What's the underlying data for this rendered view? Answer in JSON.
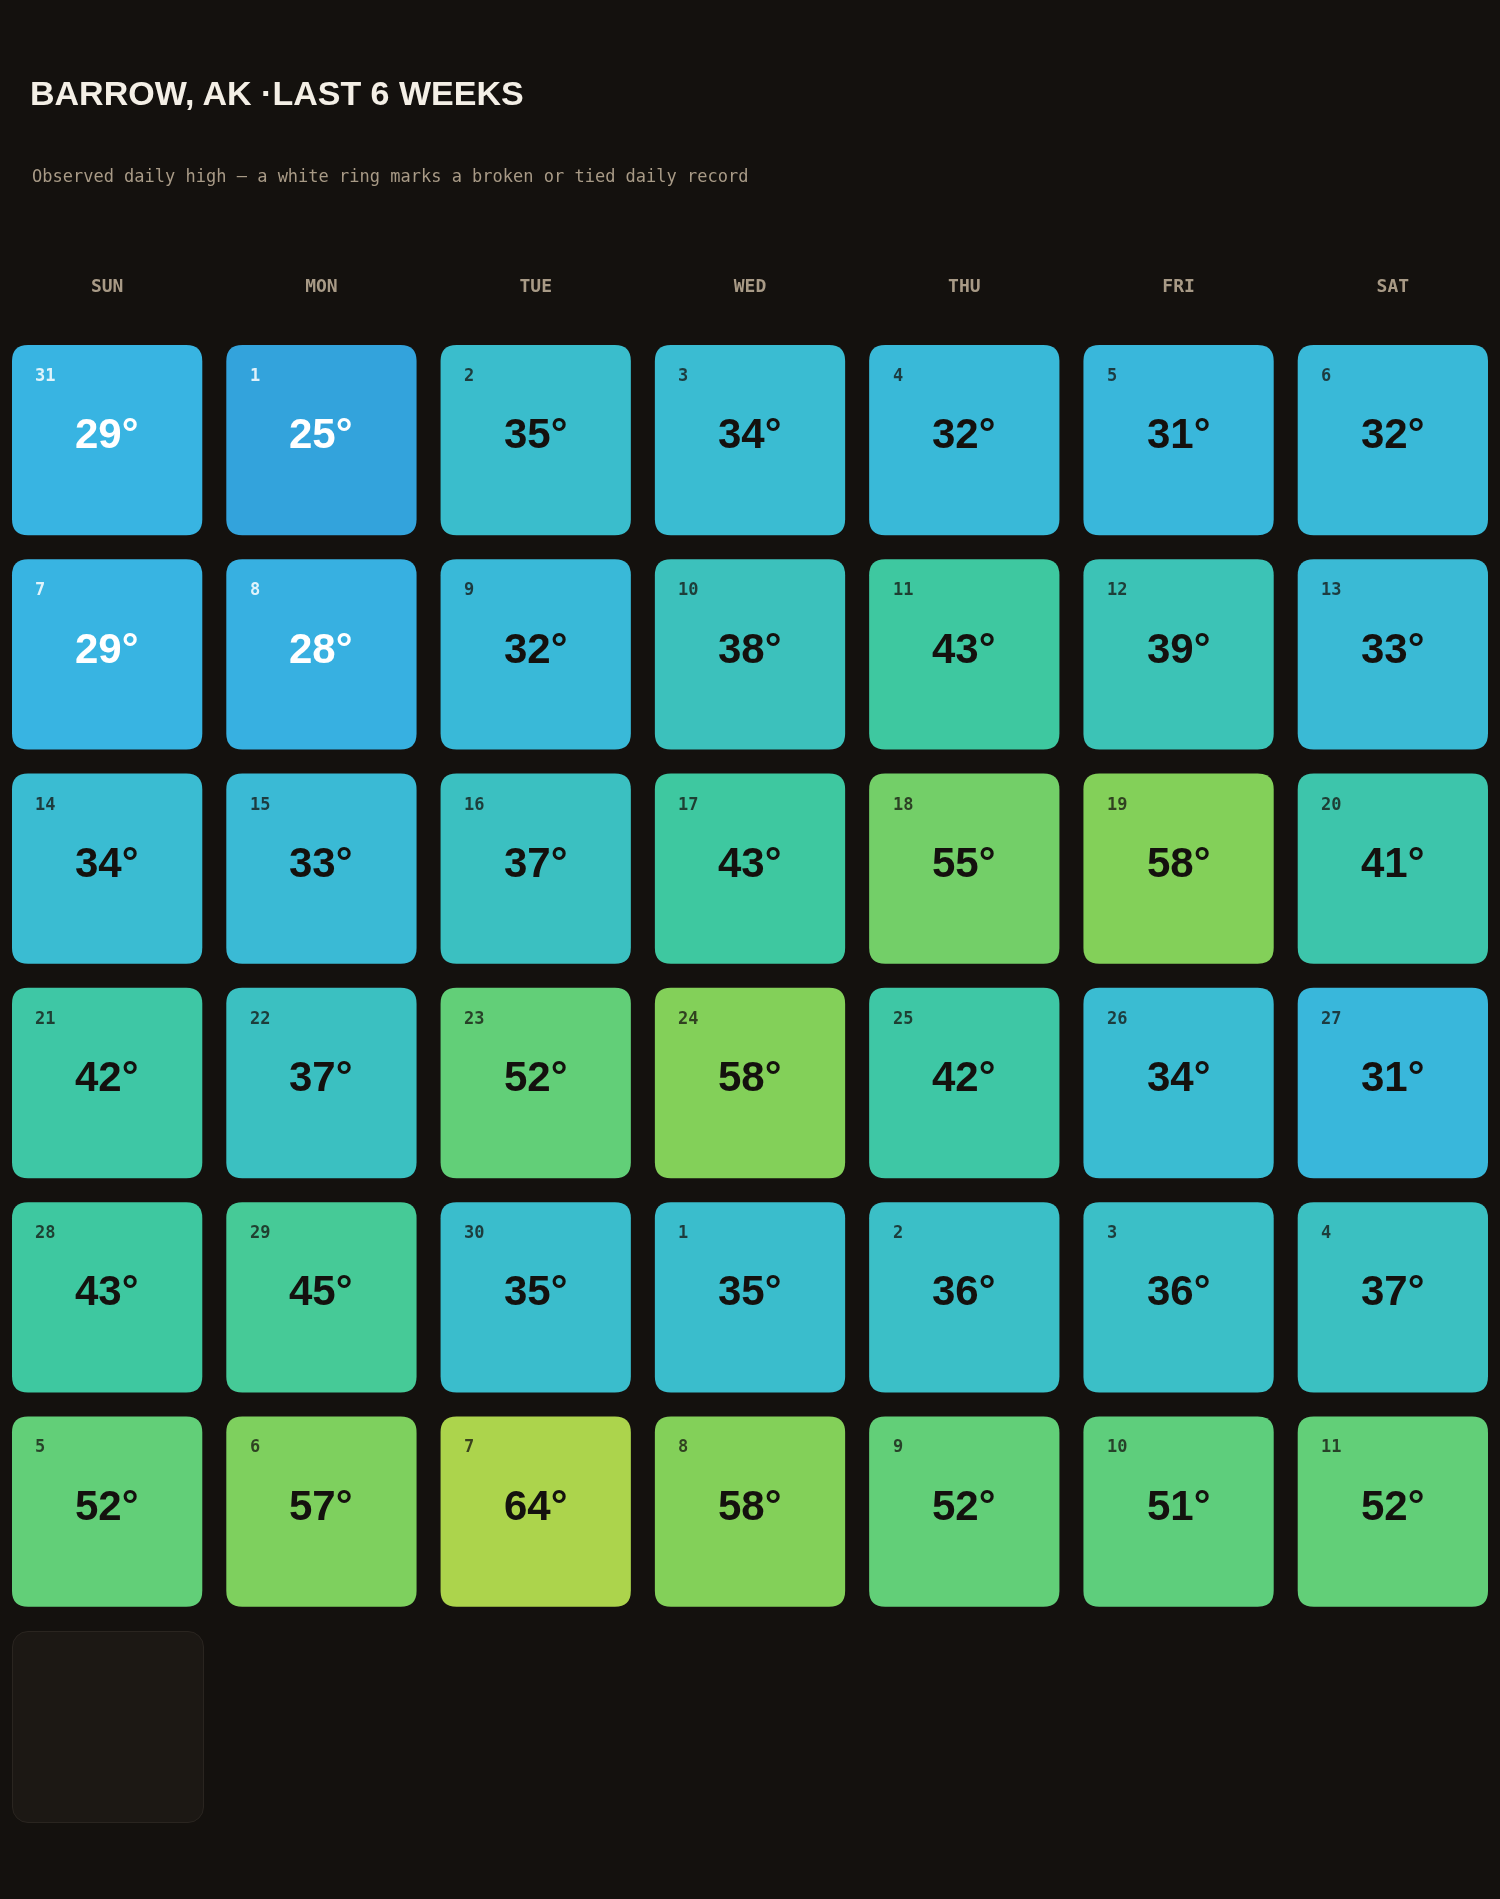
{
  "chart_data": {
    "type": "heatmap",
    "title": "BARROW, AK ·LAST 6 WEEKS",
    "subtitle": "Observed daily high — a white ring marks a broken or tied daily record",
    "categories": [
      "SUN",
      "MON",
      "TUE",
      "WED",
      "THU",
      "FRI",
      "SAT"
    ],
    "y_categories": [
      null,
      null,
      null,
      null,
      null,
      null
    ],
    "cells": [
      [
        29,
        25,
        35,
        34,
        32,
        31,
        32
      ],
      [
        29,
        28,
        32,
        38,
        43,
        39,
        33
      ],
      [
        34,
        33,
        37,
        43,
        55,
        58,
        41
      ],
      [
        42,
        37,
        52,
        58,
        42,
        34,
        31
      ],
      [
        43,
        45,
        35,
        35,
        36,
        36,
        37
      ],
      [
        52,
        57,
        64,
        58,
        52,
        51,
        52
      ]
    ],
    "cell_labels": [
      [
        "29°",
        "25°",
        "35°",
        "34°",
        "32°",
        "31°",
        "32°"
      ],
      [
        "29°",
        "28°",
        "32°",
        "38°",
        "43°",
        "39°",
        "33°"
      ],
      [
        "34°",
        "33°",
        "37°",
        "43°",
        "55°",
        "58°",
        "41°"
      ],
      [
        "42°",
        "37°",
        "52°",
        "58°",
        "42°",
        "34°",
        "31°"
      ],
      [
        "43°",
        "45°",
        "35°",
        "35°",
        "36°",
        "36°",
        "37°"
      ],
      [
        "52°",
        "57°",
        "64°",
        "58°",
        "52°",
        "51°",
        "52°"
      ]
    ],
    "annotations": [
      "31",
      "1",
      "2",
      "3",
      "4",
      "5",
      "6",
      "7",
      "8",
      "9",
      "10",
      "11",
      "12",
      "13",
      "14",
      "15",
      "16",
      "17",
      "18",
      "19",
      "20",
      "21",
      "22",
      "23",
      "24",
      "25",
      "26",
      "27",
      "28",
      "29",
      "30",
      "1",
      "2",
      "3",
      "4",
      "5",
      "6",
      "7",
      "8",
      "9",
      "10",
      "11"
    ]
  }
}
